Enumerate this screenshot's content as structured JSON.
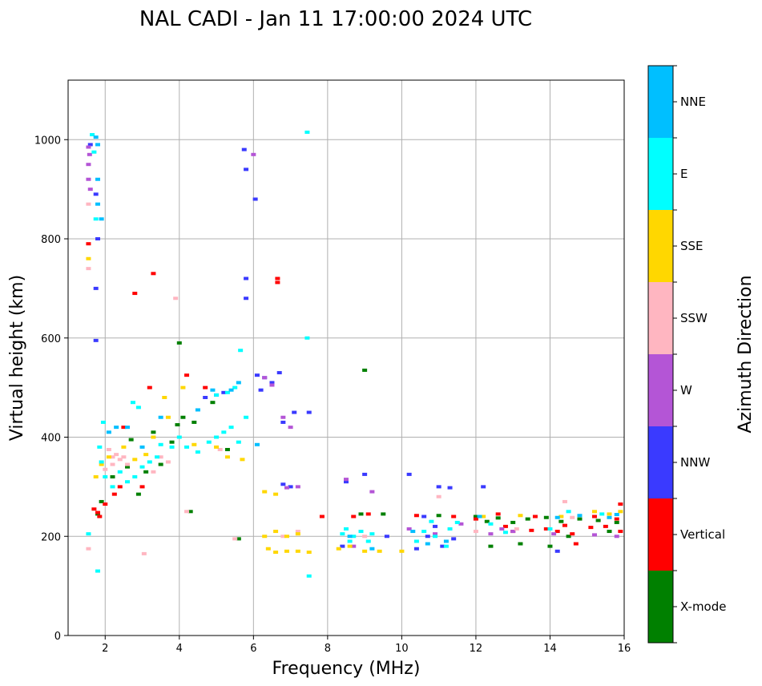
{
  "chart_data": {
    "type": "scatter",
    "title": "NAL CADI - Jan 11 17:00:00 2024 UTC",
    "xlabel": "Frequency (MHz)",
    "ylabel": "Virtual height (km)",
    "xlim": [
      1,
      16
    ],
    "ylim": [
      0,
      1120
    ],
    "xticks": [
      2,
      4,
      6,
      8,
      10,
      12,
      14,
      16
    ],
    "yticks": [
      0,
      200,
      400,
      600,
      800,
      1000
    ],
    "grid": true,
    "colorbar": {
      "label": "Azimuth Direction",
      "categories": [
        "X-mode",
        "Vertical",
        "NNW",
        "W",
        "SSW",
        "SSE",
        "E",
        "NNE"
      ],
      "colors": [
        "#008000",
        "#ff0000",
        "#3a3aff",
        "#b455d6",
        "#ffb6c1",
        "#ffd700",
        "#00ffff",
        "#00bfff"
      ]
    },
    "series": [
      {
        "name": "X-mode",
        "points": [
          [
            1.8,
            245
          ],
          [
            1.9,
            270
          ],
          [
            2.2,
            320
          ],
          [
            2.6,
            340
          ],
          [
            2.9,
            285
          ],
          [
            3.1,
            330
          ],
          [
            3.5,
            345
          ],
          [
            3.8,
            390
          ],
          [
            3.95,
            425
          ],
          [
            4.0,
            590
          ],
          [
            4.4,
            430
          ],
          [
            4.9,
            470
          ],
          [
            5.3,
            375
          ],
          [
            5.6,
            195
          ],
          [
            9.0,
            535
          ],
          [
            8.9,
            245
          ],
          [
            9.5,
            245
          ],
          [
            11.0,
            242
          ],
          [
            12.0,
            240
          ],
          [
            12.3,
            230
          ],
          [
            12.6,
            237
          ],
          [
            13.0,
            228
          ],
          [
            13.4,
            235
          ],
          [
            13.9,
            238
          ],
          [
            14.3,
            230
          ],
          [
            14.8,
            235
          ],
          [
            15.3,
            232
          ],
          [
            15.8,
            228
          ],
          [
            15.6,
            210
          ],
          [
            12.4,
            180
          ],
          [
            13.2,
            185
          ],
          [
            14.0,
            180
          ],
          [
            14.5,
            200
          ],
          [
            2.7,
            395
          ],
          [
            3.3,
            410
          ],
          [
            4.1,
            440
          ],
          [
            4.3,
            250
          ]
        ]
      },
      {
        "name": "Vertical",
        "points": [
          [
            1.55,
            790
          ],
          [
            1.7,
            255
          ],
          [
            1.8,
            248
          ],
          [
            1.85,
            240
          ],
          [
            2.0,
            265
          ],
          [
            2.25,
            285
          ],
          [
            2.4,
            300
          ],
          [
            2.5,
            420
          ],
          [
            2.8,
            690
          ],
          [
            3.0,
            300
          ],
          [
            3.2,
            500
          ],
          [
            3.3,
            730
          ],
          [
            4.2,
            525
          ],
          [
            4.7,
            500
          ],
          [
            6.65,
            720
          ],
          [
            6.65,
            712
          ],
          [
            7.85,
            240
          ],
          [
            8.7,
            240
          ],
          [
            9.1,
            245
          ],
          [
            10.4,
            242
          ],
          [
            11.4,
            240
          ],
          [
            12.0,
            235
          ],
          [
            12.8,
            220
          ],
          [
            13.0,
            210
          ],
          [
            13.5,
            212
          ],
          [
            13.9,
            215
          ],
          [
            14.2,
            210
          ],
          [
            14.6,
            205
          ],
          [
            15.1,
            218
          ],
          [
            15.5,
            220
          ],
          [
            15.9,
            210
          ],
          [
            15.8,
            235
          ],
          [
            15.2,
            240
          ],
          [
            14.4,
            222
          ],
          [
            13.6,
            240
          ],
          [
            12.6,
            245
          ],
          [
            14.7,
            185
          ],
          [
            15.9,
            265
          ]
        ]
      },
      {
        "name": "NNW",
        "points": [
          [
            1.6,
            990
          ],
          [
            1.75,
            890
          ],
          [
            1.8,
            800
          ],
          [
            1.75,
            700
          ],
          [
            1.75,
            595
          ],
          [
            5.75,
            980
          ],
          [
            5.8,
            940
          ],
          [
            6.05,
            880
          ],
          [
            5.8,
            720
          ],
          [
            5.8,
            680
          ],
          [
            6.1,
            525
          ],
          [
            6.3,
            520
          ],
          [
            6.5,
            510
          ],
          [
            6.7,
            530
          ],
          [
            6.2,
            495
          ],
          [
            6.8,
            430
          ],
          [
            7.1,
            450
          ],
          [
            7.5,
            450
          ],
          [
            6.8,
            305
          ],
          [
            7.0,
            300
          ],
          [
            8.5,
            310
          ],
          [
            9.0,
            325
          ],
          [
            10.2,
            325
          ],
          [
            10.6,
            240
          ],
          [
            10.9,
            220
          ],
          [
            10.7,
            200
          ],
          [
            11.1,
            180
          ],
          [
            10.4,
            175
          ],
          [
            11.4,
            195
          ],
          [
            11.0,
            300
          ],
          [
            11.3,
            298
          ],
          [
            12.2,
            300
          ],
          [
            5.2,
            490
          ],
          [
            5.0,
            485
          ],
          [
            4.7,
            480
          ],
          [
            14.2,
            170
          ],
          [
            8.4,
            180
          ],
          [
            9.6,
            200
          ]
        ]
      },
      {
        "name": "W",
        "points": [
          [
            1.55,
            985
          ],
          [
            1.58,
            970
          ],
          [
            1.55,
            950
          ],
          [
            1.55,
            920
          ],
          [
            1.6,
            900
          ],
          [
            6.0,
            970
          ],
          [
            6.3,
            520
          ],
          [
            6.5,
            505
          ],
          [
            6.8,
            440
          ],
          [
            7.0,
            420
          ],
          [
            7.2,
            300
          ],
          [
            6.9,
            298
          ],
          [
            8.5,
            315
          ],
          [
            9.2,
            290
          ],
          [
            8.7,
            180
          ],
          [
            10.2,
            215
          ],
          [
            10.9,
            205
          ],
          [
            11.6,
            225
          ],
          [
            12.4,
            205
          ],
          [
            13.0,
            210
          ],
          [
            12.7,
            215
          ],
          [
            14.1,
            205
          ],
          [
            15.2,
            203
          ],
          [
            15.8,
            200
          ]
        ]
      },
      {
        "name": "SSW",
        "points": [
          [
            1.55,
            740
          ],
          [
            1.55,
            870
          ],
          [
            2.1,
            375
          ],
          [
            2.2,
            360
          ],
          [
            2.3,
            365
          ],
          [
            2.4,
            355
          ],
          [
            2.2,
            345
          ],
          [
            2.0,
            335
          ],
          [
            2.5,
            360
          ],
          [
            2.6,
            345
          ],
          [
            3.3,
            330
          ],
          [
            3.5,
            360
          ],
          [
            3.7,
            350
          ],
          [
            3.9,
            680
          ],
          [
            5.1,
            375
          ],
          [
            6.8,
            200
          ],
          [
            7.2,
            210
          ],
          [
            11.0,
            280
          ],
          [
            14.4,
            270
          ],
          [
            14.6,
            238
          ],
          [
            13.1,
            215
          ],
          [
            12.0,
            210
          ],
          [
            9.0,
            200
          ],
          [
            5.5,
            195
          ],
          [
            4.2,
            250
          ],
          [
            1.55,
            175
          ],
          [
            3.05,
            165
          ]
        ]
      },
      {
        "name": "SSE",
        "points": [
          [
            1.55,
            760
          ],
          [
            1.75,
            320
          ],
          [
            1.9,
            345
          ],
          [
            2.1,
            360
          ],
          [
            2.5,
            380
          ],
          [
            2.8,
            355
          ],
          [
            3.1,
            365
          ],
          [
            3.3,
            400
          ],
          [
            3.6,
            480
          ],
          [
            3.7,
            440
          ],
          [
            4.1,
            500
          ],
          [
            4.4,
            385
          ],
          [
            5.0,
            380
          ],
          [
            5.3,
            360
          ],
          [
            5.7,
            355
          ],
          [
            6.3,
            200
          ],
          [
            6.6,
            210
          ],
          [
            6.9,
            200
          ],
          [
            7.2,
            205
          ],
          [
            6.4,
            175
          ],
          [
            6.6,
            168
          ],
          [
            6.9,
            170
          ],
          [
            7.2,
            170
          ],
          [
            7.5,
            168
          ],
          [
            6.3,
            290
          ],
          [
            6.6,
            285
          ],
          [
            8.3,
            175
          ],
          [
            8.6,
            180
          ],
          [
            9.0,
            170
          ],
          [
            9.4,
            170
          ],
          [
            10.0,
            170
          ],
          [
            12.2,
            240
          ],
          [
            13.2,
            242
          ],
          [
            14.3,
            240
          ],
          [
            15.2,
            250
          ],
          [
            15.6,
            245
          ],
          [
            15.9,
            250
          ]
        ]
      },
      {
        "name": "E",
        "points": [
          [
            1.65,
            1010
          ],
          [
            1.7,
            975
          ],
          [
            1.75,
            840
          ],
          [
            1.85,
            380
          ],
          [
            1.9,
            350
          ],
          [
            2.0,
            320
          ],
          [
            2.2,
            300
          ],
          [
            2.4,
            330
          ],
          [
            2.6,
            310
          ],
          [
            2.8,
            320
          ],
          [
            3.0,
            340
          ],
          [
            3.2,
            350
          ],
          [
            3.4,
            360
          ],
          [
            3.5,
            385
          ],
          [
            3.8,
            380
          ],
          [
            4.0,
            400
          ],
          [
            4.2,
            380
          ],
          [
            4.5,
            370
          ],
          [
            4.8,
            390
          ],
          [
            5.0,
            400
          ],
          [
            5.2,
            410
          ],
          [
            5.4,
            420
          ],
          [
            5.6,
            390
          ],
          [
            5.5,
            500
          ],
          [
            5.3,
            490
          ],
          [
            5.65,
            575
          ],
          [
            5.0,
            485
          ],
          [
            5.8,
            440
          ],
          [
            7.45,
            1015
          ],
          [
            7.45,
            600
          ],
          [
            7.5,
            120
          ],
          [
            8.4,
            205
          ],
          [
            8.5,
            215
          ],
          [
            8.7,
            200
          ],
          [
            8.9,
            210
          ],
          [
            9.2,
            205
          ],
          [
            9.1,
            190
          ],
          [
            8.6,
            190
          ],
          [
            10.4,
            190
          ],
          [
            10.6,
            210
          ],
          [
            10.9,
            200
          ],
          [
            11.2,
            180
          ],
          [
            10.8,
            230
          ],
          [
            11.3,
            215
          ],
          [
            11.5,
            228
          ],
          [
            12.4,
            225
          ],
          [
            12.8,
            208
          ],
          [
            14.0,
            215
          ],
          [
            14.5,
            250
          ],
          [
            15.4,
            245
          ],
          [
            1.8,
            130
          ],
          [
            1.55,
            205
          ],
          [
            2.9,
            460
          ],
          [
            2.75,
            470
          ],
          [
            1.95,
            430
          ]
        ]
      },
      {
        "name": "NNE",
        "points": [
          [
            1.75,
            1005
          ],
          [
            1.8,
            990
          ],
          [
            1.8,
            920
          ],
          [
            1.8,
            870
          ],
          [
            1.9,
            840
          ],
          [
            2.3,
            420
          ],
          [
            2.1,
            410
          ],
          [
            2.6,
            420
          ],
          [
            3.0,
            380
          ],
          [
            3.5,
            440
          ],
          [
            4.5,
            455
          ],
          [
            4.9,
            495
          ],
          [
            5.4,
            495
          ],
          [
            5.6,
            510
          ],
          [
            6.1,
            385
          ],
          [
            8.6,
            200
          ],
          [
            9.2,
            175
          ],
          [
            10.3,
            210
          ],
          [
            10.7,
            185
          ],
          [
            11.2,
            190
          ],
          [
            12.1,
            240
          ],
          [
            14.2,
            238
          ],
          [
            14.8,
            242
          ],
          [
            15.6,
            238
          ],
          [
            15.8,
            244
          ]
        ]
      }
    ]
  }
}
